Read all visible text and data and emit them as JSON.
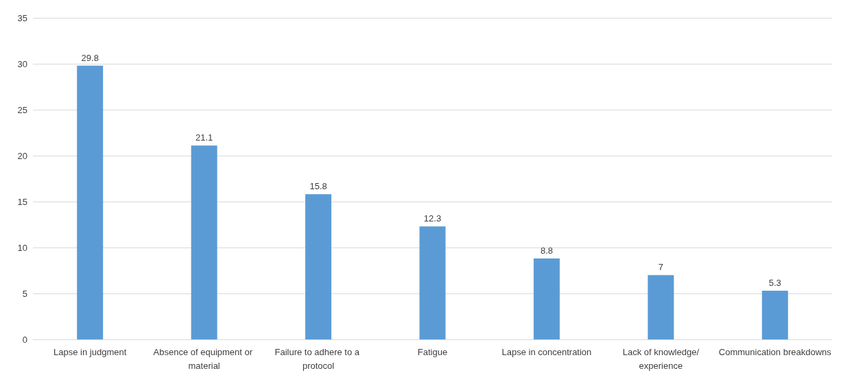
{
  "chart_data": {
    "type": "bar",
    "categories": [
      "Lapse in judgment",
      "Absence of equipment or material",
      "Failure to adhere to a protocol",
      "Fatigue",
      "Lapse in concentration",
      "Lack of knowledge/experience",
      "Communication breakdowns"
    ],
    "values": [
      29.8,
      21.1,
      15.8,
      12.3,
      8.8,
      7,
      5.3
    ],
    "color": "#5b9bd5",
    "ylim": [
      0,
      35
    ],
    "yticks": [
      0,
      5,
      10,
      15,
      20,
      25,
      30,
      35
    ],
    "grid": "y",
    "data_labels": true
  }
}
